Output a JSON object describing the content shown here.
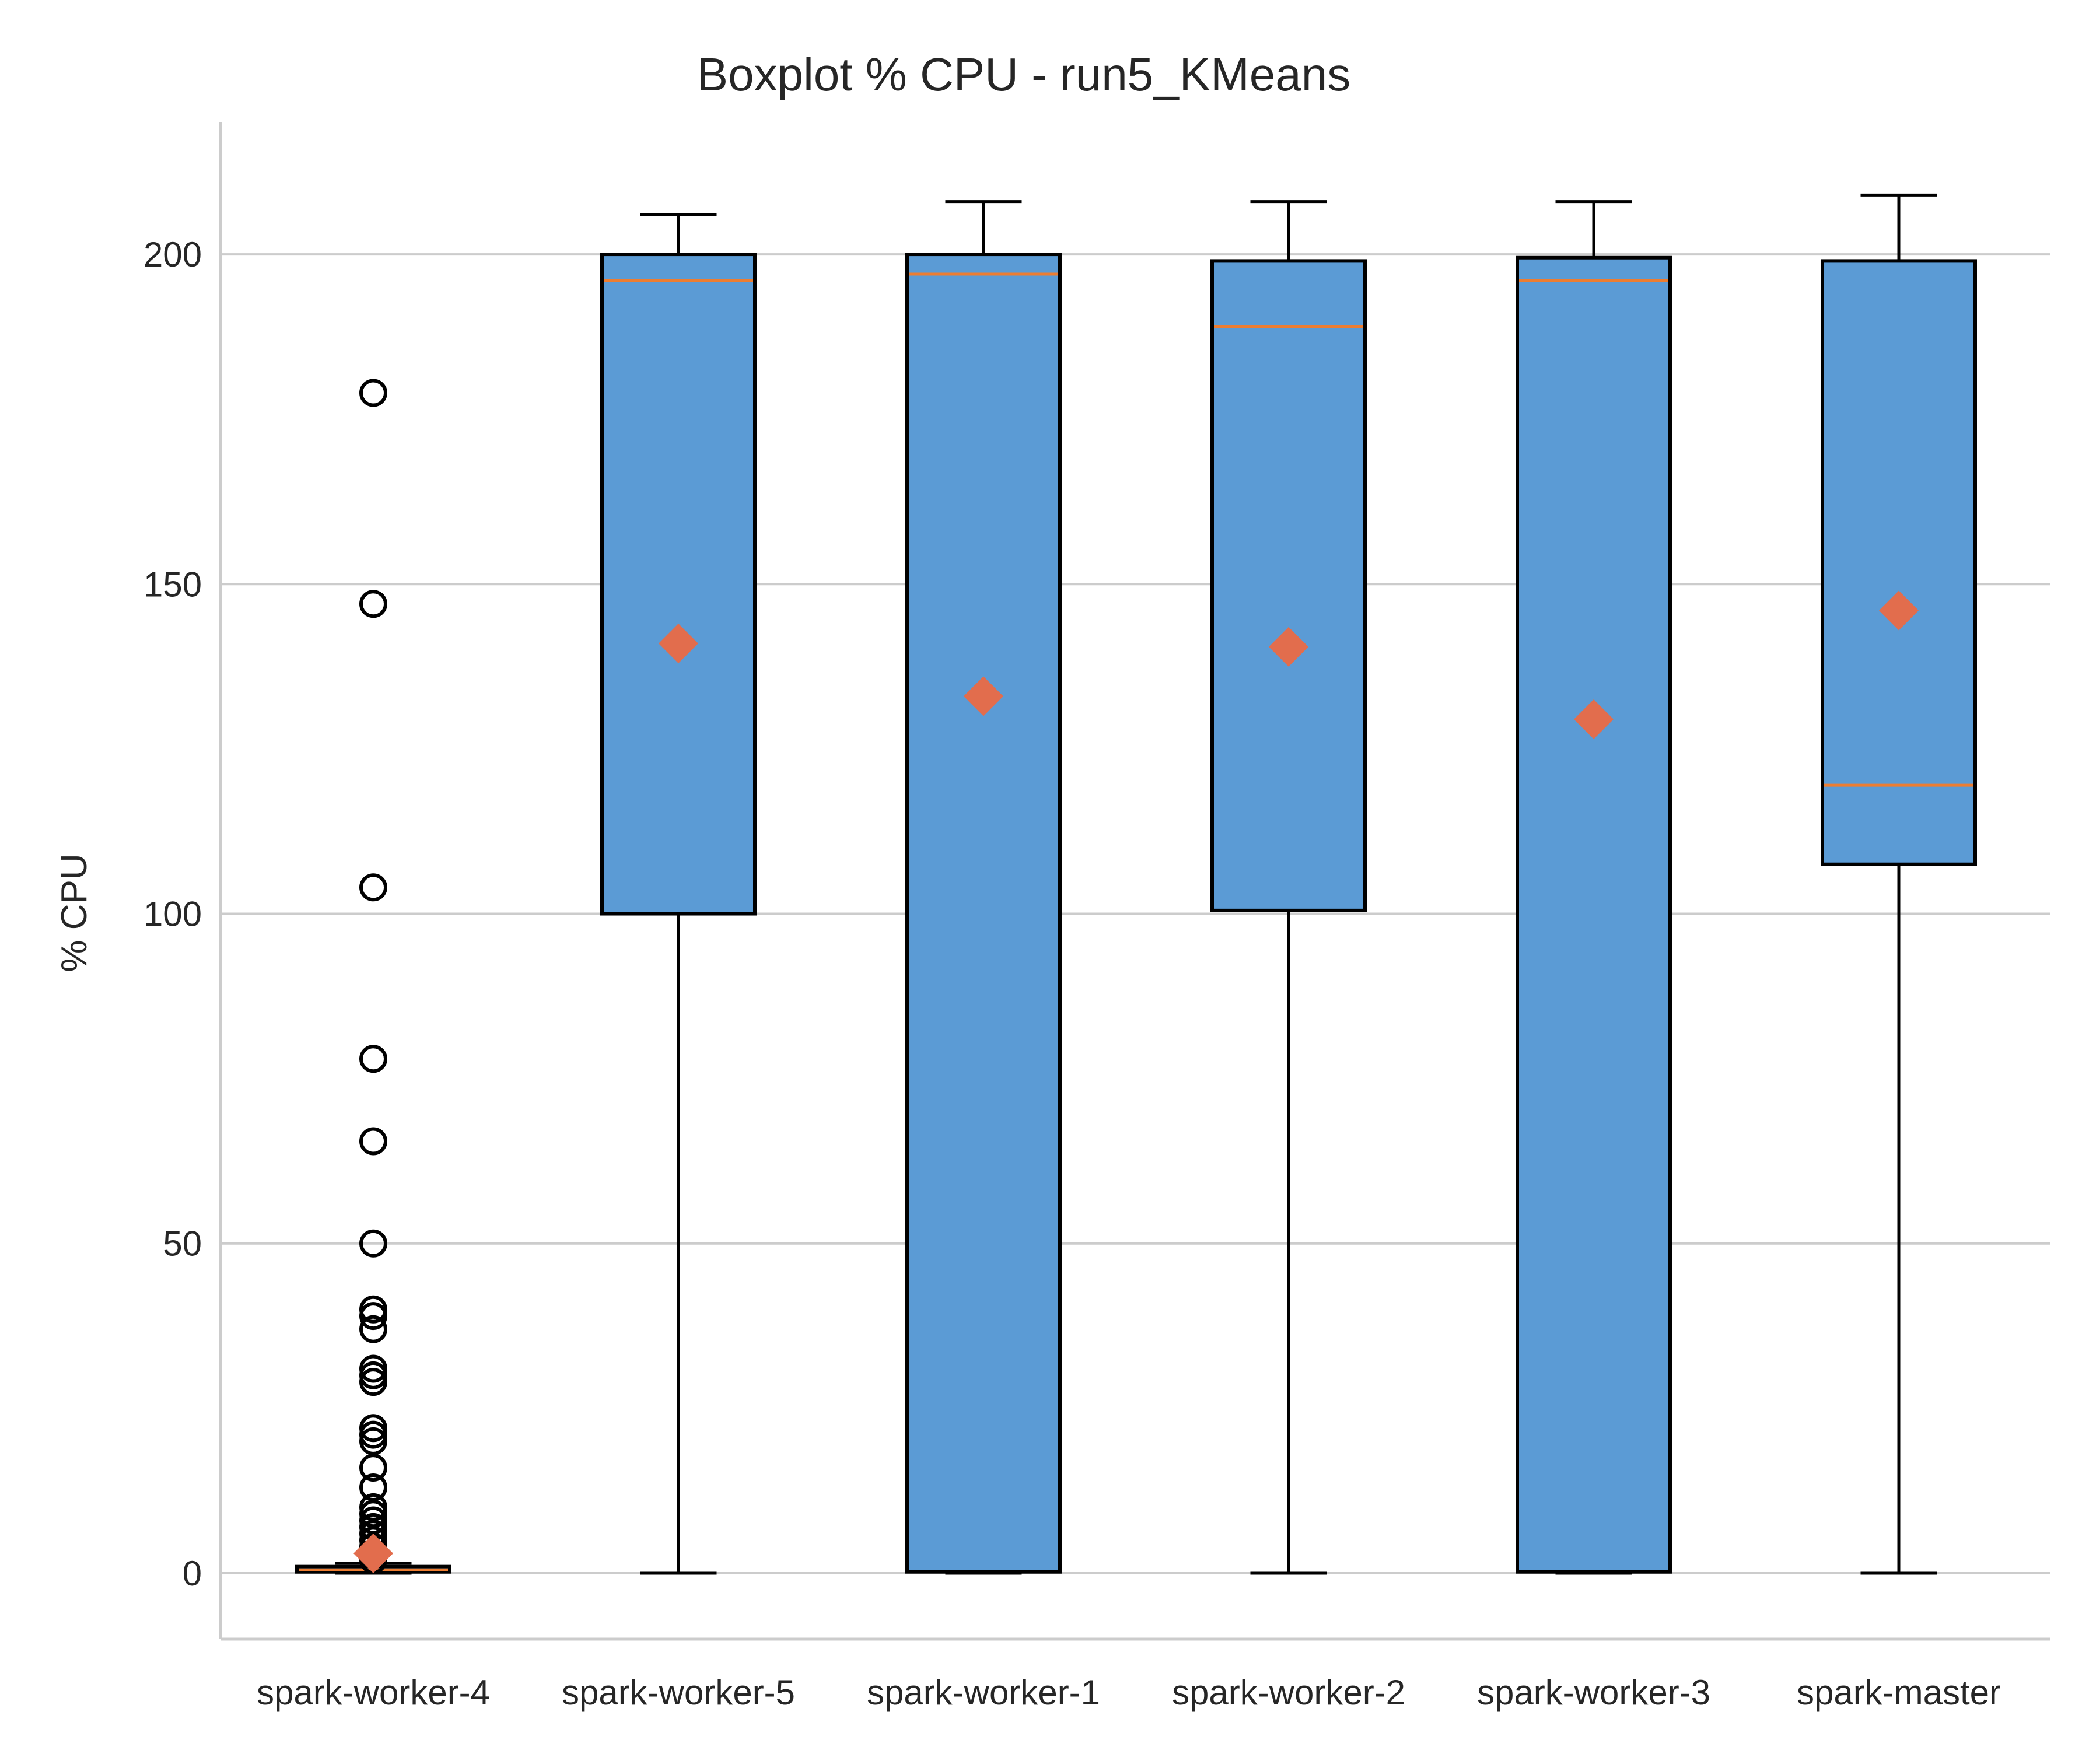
{
  "chart_data": {
    "type": "boxplot",
    "title": "Boxplot % CPU - run5_KMeans",
    "xlabel": "",
    "ylabel": "% CPU",
    "ylim": [
      -10,
      220
    ],
    "yticks": [
      0,
      50,
      100,
      150,
      200
    ],
    "grid": "horizontal",
    "colors": {
      "box_fill": "#5b9bd5",
      "box_edge": "#000000",
      "median": "#ed7d31",
      "mean_marker": "#e26d4d",
      "grid": "#cccccc",
      "axis": "#cccccc"
    },
    "series": [
      {
        "name": "spark-worker-4",
        "whislo": 0,
        "q1": 0.2,
        "med": 0.5,
        "q3": 1.0,
        "whishi": 1.5,
        "mean": 3,
        "fliers": [
          179,
          147,
          104,
          78,
          65.5,
          50,
          40,
          39,
          37,
          31,
          30,
          29,
          22,
          21,
          20,
          16,
          13,
          10,
          9,
          8,
          7,
          6,
          5,
          4,
          3,
          2
        ]
      },
      {
        "name": "spark-worker-5",
        "whislo": 0,
        "q1": 100,
        "med": 196,
        "q3": 200,
        "whishi": 206,
        "mean": 141,
        "fliers": []
      },
      {
        "name": "spark-worker-1",
        "whislo": 0,
        "q1": 0.2,
        "med": 197,
        "q3": 200,
        "whishi": 208,
        "mean": 133,
        "fliers": []
      },
      {
        "name": "spark-worker-2",
        "whislo": 0,
        "q1": 100.5,
        "med": 189,
        "q3": 199,
        "whishi": 208,
        "mean": 140.5,
        "fliers": []
      },
      {
        "name": "spark-worker-3",
        "whislo": 0,
        "q1": 0.2,
        "med": 196,
        "q3": 199.5,
        "whishi": 208,
        "mean": 129.5,
        "fliers": []
      },
      {
        "name": "spark-master",
        "whislo": 0,
        "q1": 107.5,
        "med": 119.5,
        "q3": 199,
        "whishi": 209,
        "mean": 146,
        "fliers": []
      }
    ]
  }
}
